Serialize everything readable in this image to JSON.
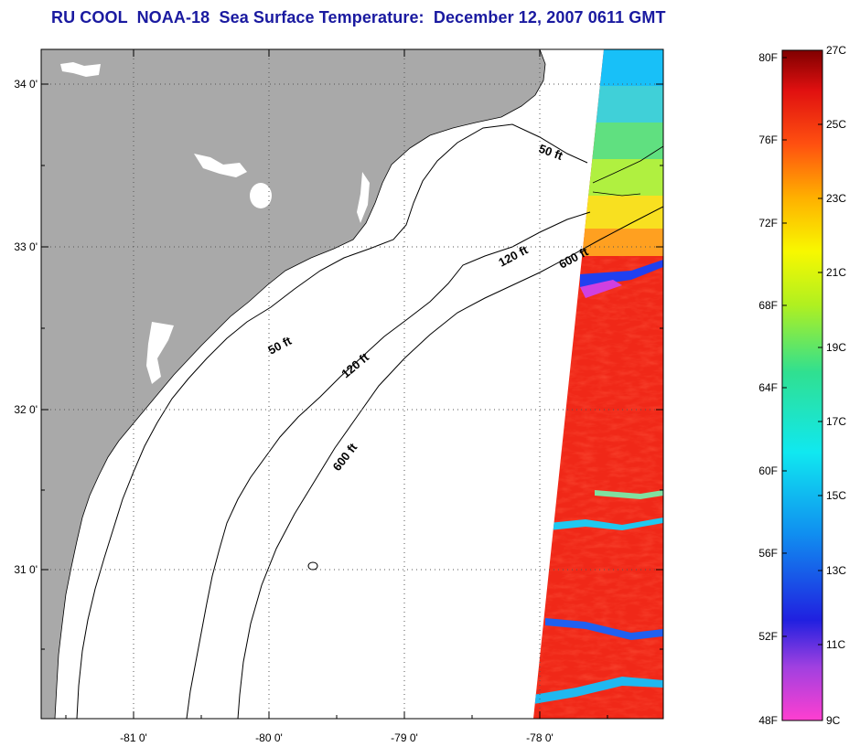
{
  "title": "RU COOL  NOAA-18  Sea Surface Temperature:  December 12, 2007 0611 GMT",
  "map": {
    "lon_labels": [
      "-81 0'",
      "-80 0'",
      "-79 0'",
      "-78 0'"
    ],
    "lat_labels": [
      "34 0'",
      "33 0'",
      "32 0'",
      "31 0'"
    ],
    "contours": [
      {
        "label": "50 ft"
      },
      {
        "label": "50 ft"
      },
      {
        "label": "120 ft"
      },
      {
        "label": "120 ft"
      },
      {
        "label": "600 ft"
      },
      {
        "label": "600 ft"
      }
    ],
    "colors": {
      "land": "#a9a9a9",
      "ocean": "#ffffff",
      "grid": "#555555"
    }
  },
  "colorbar": {
    "fahrenheit_labels": [
      "80F",
      "76F",
      "72F",
      "68F",
      "64F",
      "60F",
      "56F",
      "52F",
      "48F"
    ],
    "celsius_labels": [
      "27C",
      "25C",
      "23C",
      "21C",
      "19C",
      "17C",
      "15C",
      "13C",
      "11C",
      "9C"
    ]
  }
}
